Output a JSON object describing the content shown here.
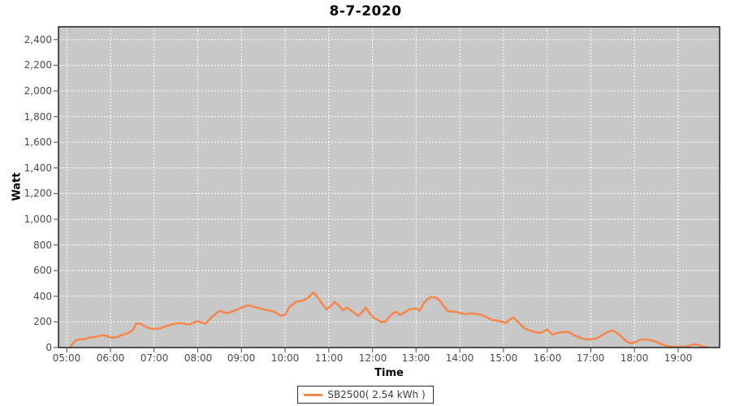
{
  "chart_data": {
    "type": "line",
    "title": "8-7-2020",
    "xlabel": "Time",
    "ylabel": "Watt",
    "legend_position": "bottom-center",
    "grid": "white dashed gridlines on gray plot background",
    "colors": {
      "page_background": "#ffffff",
      "plot_background": "#c8c8c8",
      "gridline": "#ffffff",
      "plot_border": "#1f1f1f",
      "tick_mark": "#666666",
      "tick_label": "#4a4a4a",
      "series_line": "#f6874e"
    },
    "x_domain_hours": [
      4.81,
      19.95
    ],
    "y_domain": [
      0,
      2500
    ],
    "x_tick_hours": [
      5,
      6,
      7,
      8,
      9,
      10,
      11,
      12,
      13,
      14,
      15,
      16,
      17,
      18,
      19
    ],
    "x_tick_labels": [
      "05:00",
      "06:00",
      "07:00",
      "08:00",
      "09:00",
      "10:00",
      "11:00",
      "12:00",
      "13:00",
      "14:00",
      "15:00",
      "16:00",
      "17:00",
      "18:00",
      "19:00"
    ],
    "y_tick_values": [
      0,
      200,
      400,
      600,
      800,
      1000,
      1200,
      1400,
      1600,
      1800,
      2000,
      2200,
      2400
    ],
    "y_tick_labels": [
      "0",
      "200",
      "400",
      "600",
      "800",
      "1,000",
      "1,200",
      "1,400",
      "1,600",
      "1,800",
      "2,000",
      "2,200",
      "2,400"
    ],
    "series": [
      {
        "name": "SB2500( 2.54 kWh )",
        "color": "#f6874e",
        "points_hours_watts": [
          [
            5.07,
            0
          ],
          [
            5.13,
            28
          ],
          [
            5.2,
            55
          ],
          [
            5.3,
            63
          ],
          [
            5.4,
            65
          ],
          [
            5.5,
            76
          ],
          [
            5.63,
            82
          ],
          [
            5.75,
            90
          ],
          [
            5.83,
            97
          ],
          [
            5.93,
            89
          ],
          [
            6.0,
            78
          ],
          [
            6.12,
            78
          ],
          [
            6.2,
            89
          ],
          [
            6.3,
            102
          ],
          [
            6.42,
            115
          ],
          [
            6.52,
            140
          ],
          [
            6.6,
            190
          ],
          [
            6.7,
            184
          ],
          [
            6.78,
            165
          ],
          [
            6.88,
            152
          ],
          [
            6.97,
            146
          ],
          [
            7.05,
            146
          ],
          [
            7.17,
            152
          ],
          [
            7.25,
            165
          ],
          [
            7.33,
            172
          ],
          [
            7.45,
            184
          ],
          [
            7.53,
            190
          ],
          [
            7.63,
            190
          ],
          [
            7.72,
            184
          ],
          [
            7.8,
            178
          ],
          [
            7.92,
            197
          ],
          [
            8.0,
            205
          ],
          [
            8.17,
            184
          ],
          [
            8.33,
            241
          ],
          [
            8.5,
            286
          ],
          [
            8.67,
            267
          ],
          [
            8.78,
            279
          ],
          [
            8.88,
            292
          ],
          [
            9.0,
            311
          ],
          [
            9.15,
            330
          ],
          [
            9.28,
            318
          ],
          [
            9.42,
            305
          ],
          [
            9.58,
            292
          ],
          [
            9.75,
            279
          ],
          [
            9.9,
            248
          ],
          [
            10.0,
            254
          ],
          [
            10.1,
            318
          ],
          [
            10.25,
            356
          ],
          [
            10.42,
            368
          ],
          [
            10.53,
            390
          ],
          [
            10.65,
            430
          ],
          [
            10.75,
            390
          ],
          [
            10.85,
            340
          ],
          [
            10.95,
            298
          ],
          [
            11.05,
            322
          ],
          [
            11.13,
            356
          ],
          [
            11.22,
            330
          ],
          [
            11.32,
            292
          ],
          [
            11.42,
            311
          ],
          [
            11.52,
            286
          ],
          [
            11.6,
            267
          ],
          [
            11.68,
            248
          ],
          [
            11.77,
            279
          ],
          [
            11.85,
            311
          ],
          [
            11.93,
            270
          ],
          [
            12.02,
            235
          ],
          [
            12.12,
            216
          ],
          [
            12.2,
            197
          ],
          [
            12.3,
            203
          ],
          [
            12.38,
            235
          ],
          [
            12.47,
            267
          ],
          [
            12.55,
            279
          ],
          [
            12.63,
            254
          ],
          [
            12.73,
            273
          ],
          [
            12.85,
            298
          ],
          [
            13.0,
            305
          ],
          [
            13.08,
            286
          ],
          [
            13.17,
            343
          ],
          [
            13.27,
            381
          ],
          [
            13.35,
            394
          ],
          [
            13.47,
            387
          ],
          [
            13.55,
            362
          ],
          [
            13.63,
            324
          ],
          [
            13.72,
            286
          ],
          [
            13.82,
            279
          ],
          [
            13.92,
            279
          ],
          [
            14.02,
            267
          ],
          [
            14.13,
            260
          ],
          [
            14.25,
            267
          ],
          [
            14.38,
            260
          ],
          [
            14.5,
            254
          ],
          [
            14.62,
            235
          ],
          [
            14.73,
            216
          ],
          [
            14.85,
            210
          ],
          [
            14.95,
            203
          ],
          [
            15.05,
            190
          ],
          [
            15.13,
            216
          ],
          [
            15.22,
            235
          ],
          [
            15.32,
            203
          ],
          [
            15.42,
            171
          ],
          [
            15.5,
            146
          ],
          [
            15.6,
            133
          ],
          [
            15.72,
            121
          ],
          [
            15.83,
            114
          ],
          [
            15.93,
            127
          ],
          [
            16.0,
            140
          ],
          [
            16.12,
            102
          ],
          [
            16.25,
            114
          ],
          [
            16.38,
            121
          ],
          [
            16.5,
            121
          ],
          [
            16.62,
            95
          ],
          [
            16.75,
            76
          ],
          [
            16.87,
            64
          ],
          [
            17.0,
            64
          ],
          [
            17.13,
            70
          ],
          [
            17.25,
            95
          ],
          [
            17.38,
            121
          ],
          [
            17.5,
            133
          ],
          [
            17.62,
            108
          ],
          [
            17.73,
            76
          ],
          [
            17.83,
            44
          ],
          [
            17.93,
            32
          ],
          [
            18.03,
            44
          ],
          [
            18.13,
            60
          ],
          [
            18.25,
            63
          ],
          [
            18.38,
            57
          ],
          [
            18.5,
            44
          ],
          [
            18.62,
            25
          ],
          [
            18.73,
            13
          ],
          [
            18.85,
            6
          ],
          [
            19.0,
            5
          ],
          [
            19.12,
            6
          ],
          [
            19.25,
            13
          ],
          [
            19.35,
            25
          ],
          [
            19.45,
            22
          ],
          [
            19.55,
            8
          ],
          [
            19.65,
            2
          ]
        ]
      }
    ]
  }
}
